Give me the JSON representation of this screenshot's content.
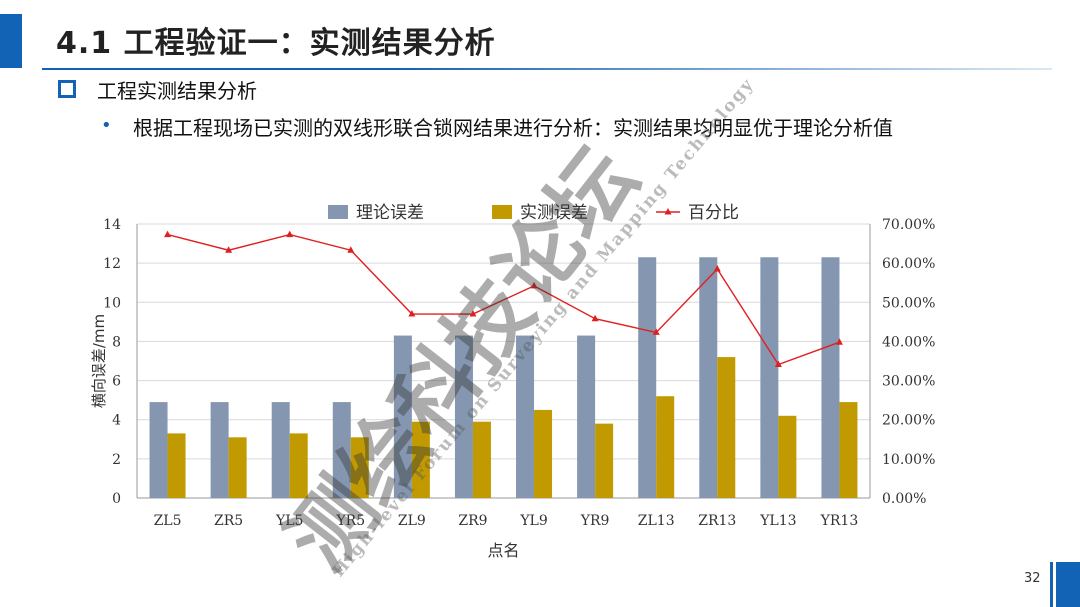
{
  "header": {
    "title": "4.1 工程验证一：实测结果分析"
  },
  "section": {
    "title": "工程实测结果分析"
  },
  "bullet": {
    "text": "根据工程现场已实测的双线形联合锁网结果进行分析：实测结果均明显优于理论分析值"
  },
  "page_number": "32",
  "colors": {
    "accent": "#1262b5",
    "theory_bar": "#8496b0",
    "measured_bar": "#c09a00",
    "percent_line": "#e02020"
  },
  "chart_data": {
    "type": "bar",
    "categories": [
      "ZL5",
      "ZR5",
      "YL5",
      "YR5",
      "ZL9",
      "ZR9",
      "YL9",
      "YR9",
      "ZL13",
      "ZR13",
      "YL13",
      "YR13"
    ],
    "series": [
      {
        "name": "理论误差",
        "type": "bar",
        "axis": "left",
        "values": [
          4.9,
          4.9,
          4.9,
          4.9,
          8.3,
          8.3,
          8.3,
          8.3,
          12.3,
          12.3,
          12.3,
          12.3
        ]
      },
      {
        "name": "实测误差",
        "type": "bar",
        "axis": "left",
        "values": [
          3.3,
          3.1,
          3.3,
          3.1,
          3.9,
          3.9,
          4.5,
          3.8,
          5.2,
          7.2,
          4.2,
          4.9
        ]
      },
      {
        "name": "百分比",
        "type": "line",
        "axis": "right",
        "values": [
          67.3,
          63.3,
          67.3,
          63.3,
          47.0,
          47.0,
          54.2,
          45.8,
          42.3,
          58.5,
          34.1,
          39.8
        ]
      }
    ],
    "xlabel": "点名",
    "ylabel": "横向误差/mm",
    "ylim": [
      0,
      14
    ],
    "y_ticks": [
      "0",
      "2",
      "4",
      "6",
      "8",
      "10",
      "12",
      "14"
    ],
    "y2lim": [
      0,
      70
    ],
    "y2_ticks": [
      "0.00%",
      "10.00%",
      "20.00%",
      "30.00%",
      "40.00%",
      "50.00%",
      "60.00%",
      "70.00%"
    ],
    "legend_position": "top",
    "grid": true
  },
  "watermark": {
    "main": "测绘科技论坛",
    "sub": "High-level Forum on Surveying and Mapping Technology"
  }
}
